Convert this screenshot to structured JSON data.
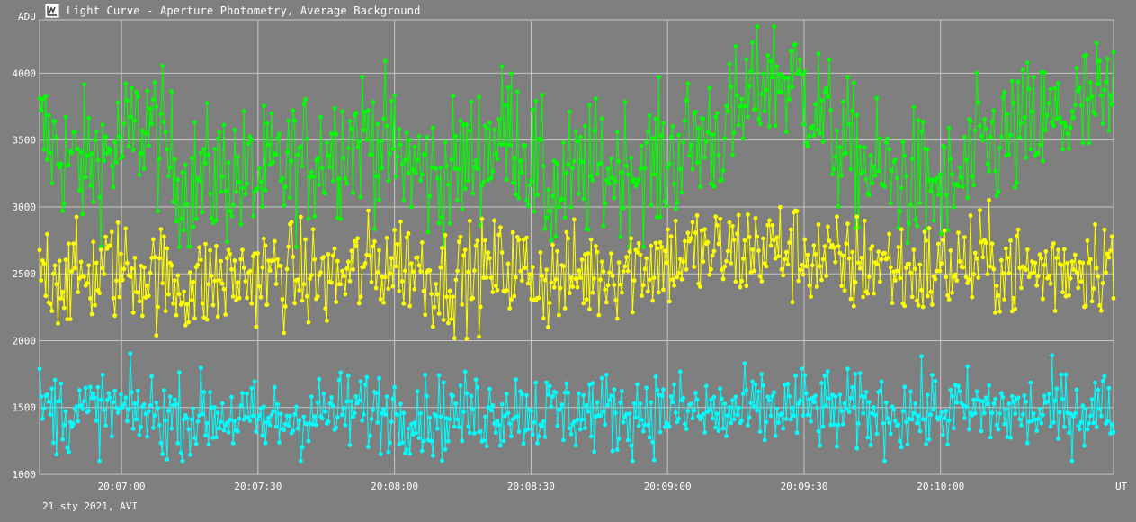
{
  "window": {
    "title": "Light Curve - Aperture Photometry, Average Background",
    "icon": "light-curve-app-icon"
  },
  "footer": "21 sty 2021, AVI",
  "chart_data": {
    "type": "line",
    "title": "Light Curve - Aperture Photometry, Average Background",
    "ylabel": "ADU",
    "xlabel": "UT",
    "ylim": [
      1000,
      4400
    ],
    "xlim": [
      "20:06:42",
      "20:10:38"
    ],
    "yticks": [
      1000,
      1500,
      2000,
      2500,
      3000,
      3500,
      4000
    ],
    "xticks": [
      "20:07:00",
      "20:07:30",
      "20:08:00",
      "20:08:30",
      "20:09:00",
      "20:09:30",
      "20:10:00"
    ],
    "grid": true,
    "legend": "none",
    "background": "#7f7f7f",
    "series": [
      {
        "color": "#00ff00",
        "x": [
          "20:06:42",
          "20:06:50",
          "20:06:58",
          "20:07:06",
          "20:07:14",
          "20:07:22",
          "20:07:30",
          "20:07:38",
          "20:07:46",
          "20:07:54",
          "20:08:02",
          "20:08:10",
          "20:08:18",
          "20:08:26",
          "20:08:34",
          "20:08:42",
          "20:08:50",
          "20:08:58",
          "20:09:06",
          "20:09:14",
          "20:09:22",
          "20:09:30",
          "20:09:38",
          "20:09:46",
          "20:09:54",
          "20:10:02",
          "20:10:10",
          "20:10:18",
          "20:10:26",
          "20:10:34"
        ],
        "values": [
          3550,
          3300,
          3400,
          3650,
          3150,
          3250,
          3200,
          3300,
          3450,
          3550,
          3350,
          3200,
          3400,
          3600,
          3100,
          3250,
          3300,
          3300,
          3500,
          3600,
          4000,
          3900,
          3450,
          3250,
          3200,
          3100,
          3450,
          3550,
          3650,
          3750
        ],
        "range": [
          2700,
          4350
        ]
      },
      {
        "color": "#ffff00",
        "x": [
          "20:06:42",
          "20:06:50",
          "20:06:58",
          "20:07:06",
          "20:07:14",
          "20:07:22",
          "20:07:30",
          "20:07:38",
          "20:07:46",
          "20:07:54",
          "20:08:02",
          "20:08:10",
          "20:08:18",
          "20:08:26",
          "20:08:34",
          "20:08:42",
          "20:08:50",
          "20:08:58",
          "20:09:06",
          "20:09:14",
          "20:09:22",
          "20:09:30",
          "20:09:38",
          "20:09:46",
          "20:09:54",
          "20:10:02",
          "20:10:10",
          "20:10:18",
          "20:10:26",
          "20:10:34"
        ],
        "values": [
          2550,
          2450,
          2550,
          2500,
          2400,
          2450,
          2500,
          2500,
          2450,
          2550,
          2600,
          2450,
          2500,
          2550,
          2450,
          2500,
          2550,
          2600,
          2650,
          2650,
          2700,
          2650,
          2550,
          2600,
          2500,
          2550,
          2600,
          2500,
          2550,
          2600
        ],
        "range": [
          1850,
          3050
        ]
      },
      {
        "color": "#00ffff",
        "x": [
          "20:06:42",
          "20:06:50",
          "20:06:58",
          "20:07:06",
          "20:07:14",
          "20:07:22",
          "20:07:30",
          "20:07:38",
          "20:07:46",
          "20:07:54",
          "20:08:02",
          "20:08:10",
          "20:08:18",
          "20:08:26",
          "20:08:34",
          "20:08:42",
          "20:08:50",
          "20:08:58",
          "20:09:06",
          "20:09:14",
          "20:09:22",
          "20:09:30",
          "20:09:38",
          "20:09:46",
          "20:09:54",
          "20:10:02",
          "20:10:10",
          "20:10:18",
          "20:10:26",
          "20:10:34"
        ],
        "values": [
          1500,
          1450,
          1480,
          1450,
          1420,
          1450,
          1380,
          1420,
          1460,
          1480,
          1470,
          1430,
          1460,
          1500,
          1460,
          1470,
          1450,
          1480,
          1460,
          1450,
          1480,
          1500,
          1460,
          1470,
          1460,
          1470,
          1480,
          1450,
          1470,
          1490
        ],
        "range": [
          1100,
          2050
        ]
      }
    ]
  }
}
